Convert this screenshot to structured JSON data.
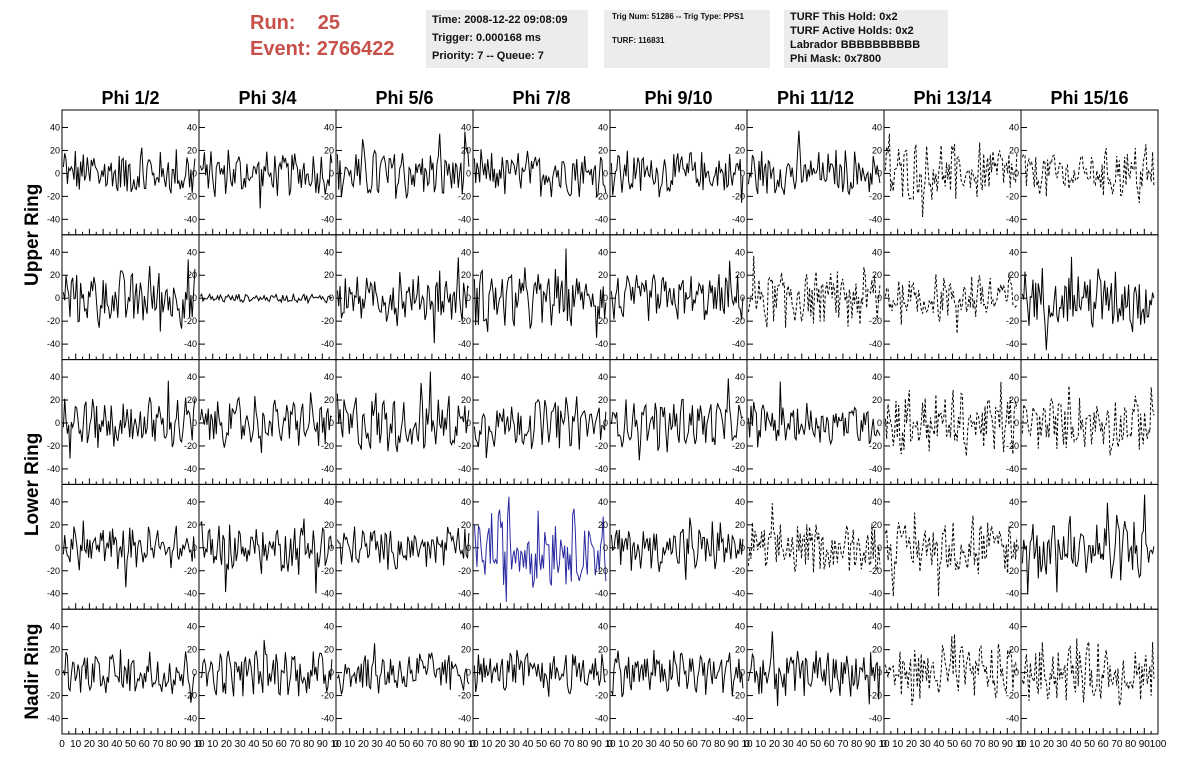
{
  "header": {
    "run_label": "Run:",
    "run_value": "25",
    "event_label": "Event:",
    "event_value": "2766422",
    "time": "Time: 2008-12-22 09:08:09",
    "trigger": "Trigger: 0.000168 ms",
    "priority": "Priority: 7 -- Queue: 7",
    "trig_num": "Trig Num: 51286 -- Trig Type: PPS1",
    "turf": "TURF: 116831",
    "turf_this_hold": "TURF This Hold: 0x2",
    "turf_active_holds": "TURF Active Holds: 0x2",
    "labrador": "Labrador BBBBBBBBBB",
    "phi_mask": "Phi Mask: 0x7800"
  },
  "chart_data": {
    "type": "line",
    "columns": [
      "Phi 1/2",
      "Phi 3/4",
      "Phi 5/6",
      "Phi 7/8",
      "Phi 9/10",
      "Phi 11/12",
      "Phi 13/14",
      "Phi 15/16"
    ],
    "rows": [
      "Upper Ring",
      "Upper Ring",
      "Lower Ring",
      "Lower Ring",
      "Nadir Ring"
    ],
    "row_labels": [
      "Upper Ring",
      "Lower Ring",
      "Nadir Ring"
    ],
    "ylim": [
      -50,
      50
    ],
    "yticks": [
      -40,
      -20,
      0,
      20,
      40
    ],
    "ytick_labels": [
      "-40",
      "-20",
      "0",
      "20",
      "40"
    ],
    "xlim": [
      0,
      100
    ],
    "xticks": [
      0,
      10,
      20,
      30,
      40,
      50,
      60,
      70,
      80,
      90,
      100
    ],
    "xtick_labels": [
      "0",
      "10",
      "20",
      "30",
      "40",
      "50",
      "60",
      "70",
      "80",
      "90",
      "100"
    ],
    "xtick_last_label": "10",
    "final_xtick_last_label": "100",
    "samples": 100,
    "colors": {
      "normal": "#000000",
      "triggered": "#2a2aa0",
      "frame": "#000000"
    },
    "amplitudes": [
      [
        18,
        15,
        18,
        16,
        16,
        16,
        22,
        18
      ],
      [
        20,
        3,
        18,
        20,
        16,
        20,
        18,
        22
      ],
      [
        18,
        16,
        20,
        18,
        16,
        16,
        22,
        18
      ],
      [
        15,
        18,
        15,
        26,
        16,
        18,
        18,
        22
      ],
      [
        16,
        16,
        15,
        14,
        16,
        16,
        20,
        20
      ]
    ],
    "dashed": [
      [
        false,
        false,
        false,
        false,
        false,
        false,
        true,
        true
      ],
      [
        false,
        false,
        false,
        false,
        false,
        true,
        true,
        false
      ],
      [
        false,
        false,
        false,
        false,
        false,
        false,
        true,
        true
      ],
      [
        false,
        false,
        false,
        false,
        false,
        true,
        true,
        false
      ],
      [
        false,
        false,
        false,
        false,
        false,
        false,
        true,
        true
      ]
    ],
    "highlight": [
      3,
      3
    ]
  }
}
